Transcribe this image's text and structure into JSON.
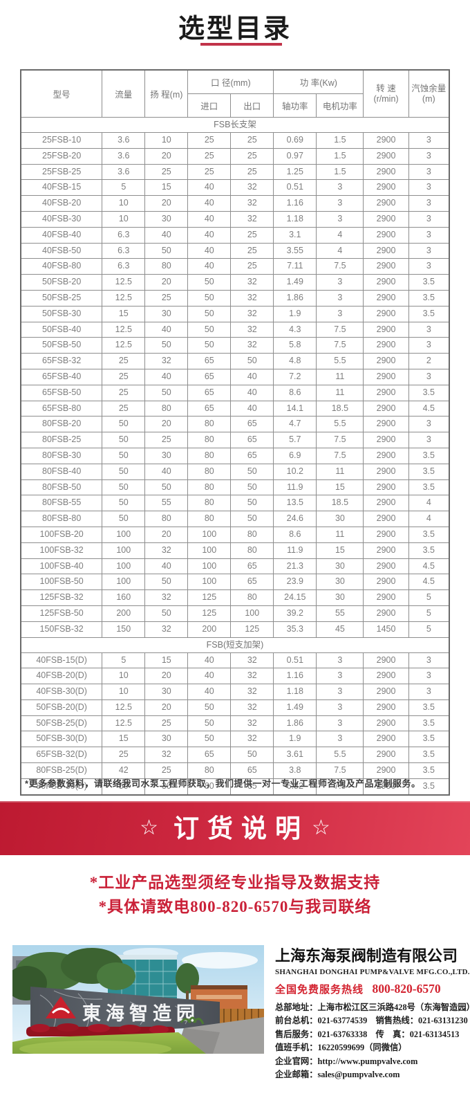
{
  "title": "选型目录",
  "table": {
    "headers": {
      "model": "型号",
      "flow": "流量",
      "head": "扬 程(m)",
      "diameter_group": "口 径(mm)",
      "inlet": "进口",
      "outlet": "出口",
      "power_group": "功 率(Kw)",
      "shaft_power": "轴功率",
      "motor_power": "电机功率",
      "speed_line1": "转 速",
      "speed_line2": "(r/min)",
      "npsh_line1": "汽蚀余量",
      "npsh_line2": "(m)"
    },
    "sections": [
      {
        "label": "FSB长支架",
        "rows": [
          [
            "25FSB-10",
            "3.6",
            "10",
            "25",
            "25",
            "0.69",
            "1.5",
            "2900",
            "3"
          ],
          [
            "25FSB-20",
            "3.6",
            "20",
            "25",
            "25",
            "0.97",
            "1.5",
            "2900",
            "3"
          ],
          [
            "25FSB-25",
            "3.6",
            "25",
            "25",
            "25",
            "1.25",
            "1.5",
            "2900",
            "3"
          ],
          [
            "40FSB-15",
            "5",
            "15",
            "40",
            "32",
            "0.51",
            "3",
            "2900",
            "3"
          ],
          [
            "40FSB-20",
            "10",
            "20",
            "40",
            "32",
            "1.16",
            "3",
            "2900",
            "3"
          ],
          [
            "40FSB-30",
            "10",
            "30",
            "40",
            "32",
            "1.18",
            "3",
            "2900",
            "3"
          ],
          [
            "40FSB-40",
            "6.3",
            "40",
            "40",
            "25",
            "3.1",
            "4",
            "2900",
            "3"
          ],
          [
            "40FSB-50",
            "6.3",
            "50",
            "40",
            "25",
            "3.55",
            "4",
            "2900",
            "3"
          ],
          [
            "40FSB-80",
            "6.3",
            "80",
            "40",
            "25",
            "7.11",
            "7.5",
            "2900",
            "3"
          ],
          [
            "50FSB-20",
            "12.5",
            "20",
            "50",
            "32",
            "1.49",
            "3",
            "2900",
            "3.5"
          ],
          [
            "50FSB-25",
            "12.5",
            "25",
            "50",
            "32",
            "1.86",
            "3",
            "2900",
            "3.5"
          ],
          [
            "50FSB-30",
            "15",
            "30",
            "50",
            "32",
            "1.9",
            "3",
            "2900",
            "3.5"
          ],
          [
            "50FSB-40",
            "12.5",
            "40",
            "50",
            "32",
            "4.3",
            "7.5",
            "2900",
            "3"
          ],
          [
            "50FSB-50",
            "12.5",
            "50",
            "50",
            "32",
            "5.8",
            "7.5",
            "2900",
            "3"
          ],
          [
            "65FSB-32",
            "25",
            "32",
            "65",
            "50",
            "4.8",
            "5.5",
            "2900",
            "2"
          ],
          [
            "65FSB-40",
            "25",
            "40",
            "65",
            "40",
            "7.2",
            "11",
            "2900",
            "3"
          ],
          [
            "65FSB-50",
            "25",
            "50",
            "65",
            "40",
            "8.6",
            "11",
            "2900",
            "3.5"
          ],
          [
            "65FSB-80",
            "25",
            "80",
            "65",
            "40",
            "14.1",
            "18.5",
            "2900",
            "4.5"
          ],
          [
            "80FSB-20",
            "50",
            "20",
            "80",
            "65",
            "4.7",
            "5.5",
            "2900",
            "3"
          ],
          [
            "80FSB-25",
            "50",
            "25",
            "80",
            "65",
            "5.7",
            "7.5",
            "2900",
            "3"
          ],
          [
            "80FSB-30",
            "50",
            "30",
            "80",
            "65",
            "6.9",
            "7.5",
            "2900",
            "3.5"
          ],
          [
            "80FSB-40",
            "50",
            "40",
            "80",
            "50",
            "10.2",
            "11",
            "2900",
            "3.5"
          ],
          [
            "80FSB-50",
            "50",
            "50",
            "80",
            "50",
            "11.9",
            "15",
            "2900",
            "3.5"
          ],
          [
            "80FSB-55",
            "50",
            "55",
            "80",
            "50",
            "13.5",
            "18.5",
            "2900",
            "4"
          ],
          [
            "80FSB-80",
            "50",
            "80",
            "80",
            "50",
            "24.6",
            "30",
            "2900",
            "4"
          ],
          [
            "100FSB-20",
            "100",
            "20",
            "100",
            "80",
            "8.6",
            "11",
            "2900",
            "3.5"
          ],
          [
            "100FSB-32",
            "100",
            "32",
            "100",
            "80",
            "11.9",
            "15",
            "2900",
            "3.5"
          ],
          [
            "100FSB-40",
            "100",
            "40",
            "100",
            "65",
            "21.3",
            "30",
            "2900",
            "4.5"
          ],
          [
            "100FSB-50",
            "100",
            "50",
            "100",
            "65",
            "23.9",
            "30",
            "2900",
            "4.5"
          ],
          [
            "125FSB-32",
            "160",
            "32",
            "125",
            "80",
            "24.15",
            "30",
            "2900",
            "5"
          ],
          [
            "125FSB-50",
            "200",
            "50",
            "125",
            "100",
            "39.2",
            "55",
            "2900",
            "5"
          ],
          [
            "150FSB-32",
            "150",
            "32",
            "200",
            "125",
            "35.3",
            "45",
            "1450",
            "5"
          ]
        ]
      },
      {
        "label": "FSB(短支加架)",
        "rows": [
          [
            "40FSB-15(D)",
            "5",
            "15",
            "40",
            "32",
            "0.51",
            "3",
            "2900",
            "3"
          ],
          [
            "40FSB-20(D)",
            "10",
            "20",
            "40",
            "32",
            "1.16",
            "3",
            "2900",
            "3"
          ],
          [
            "40FSB-30(D)",
            "10",
            "30",
            "40",
            "32",
            "1.18",
            "3",
            "2900",
            "3"
          ],
          [
            "50FSB-20(D)",
            "12.5",
            "20",
            "50",
            "32",
            "1.49",
            "3",
            "2900",
            "3.5"
          ],
          [
            "50FSB-25(D)",
            "12.5",
            "25",
            "50",
            "32",
            "1.86",
            "3",
            "2900",
            "3.5"
          ],
          [
            "50FSB-30(D)",
            "15",
            "30",
            "50",
            "32",
            "1.9",
            "3",
            "2900",
            "3.5"
          ],
          [
            "65FSB-32(D)",
            "25",
            "32",
            "65",
            "50",
            "3.61",
            "5.5",
            "2900",
            "3.5"
          ],
          [
            "80FSB-25(D)",
            "42",
            "25",
            "80",
            "65",
            "3.8",
            "7.5",
            "2900",
            "3.5"
          ],
          [
            "80FSB-30(D)",
            "50",
            "30",
            "80",
            "65",
            "6.82",
            "7.5",
            "2900",
            "3.5"
          ]
        ]
      }
    ],
    "note": "*更多参数资料，请联络我司水泵工程师获取，我们提供一对一专业工程师咨询及产品定制服务。"
  },
  "banner": {
    "star_left": "☆",
    "title": "订货说明",
    "star_right": "☆"
  },
  "notice": {
    "lines": [
      "*工业产品选型须经专业指导及数据支持",
      "*具体请致电800-820-6570与我司联络"
    ]
  },
  "company": {
    "photo_sign": "東海智造园",
    "name_cn": "上海东海泵阀制造有限公司",
    "name_en": "SHANGHAI DONGHAI PUMP&VALVE MFG.CO.,LTD.",
    "hotline_label": "全国免费服务热线",
    "hotline_number": "800-820-6570",
    "contacts": [
      "总部地址：上海市松江区三浜路428号（东海智造园）",
      "前台总机：021-63774539　销售热线：021-63131230",
      "售后服务：021-63763338　传　真：021-63134513",
      "值班手机：16220599699（同微信）",
      "企业官网：http://www.pumpvalve.com",
      "企业邮箱：sales@pumpvalve.com"
    ]
  },
  "colors": {
    "accent_red": "#c13349",
    "banner_red_dark": "#bd1a31",
    "banner_red_light": "#e34459",
    "notice_red": "#ca2138",
    "table_text_gray": "#7e7e7e"
  }
}
